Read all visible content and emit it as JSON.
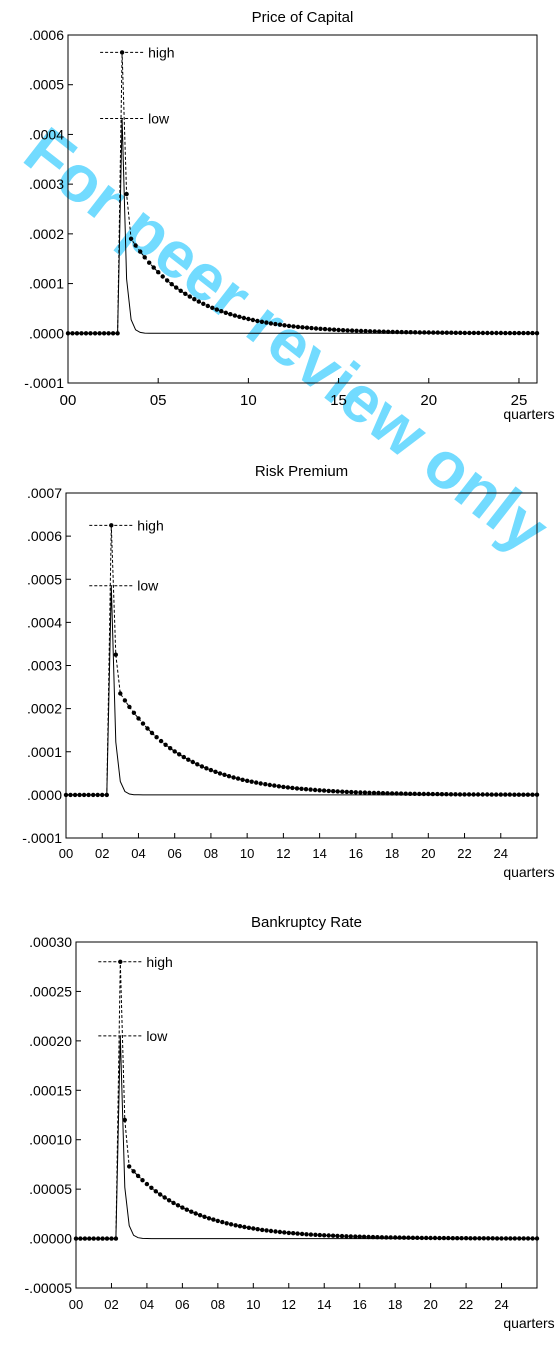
{
  "watermark": "For peer review only",
  "colors": {
    "axis": "#000000",
    "line": "#000000",
    "watermark": "#00bfff"
  },
  "chart_data": [
    {
      "type": "line",
      "title": "Price of Capital",
      "xlabel": "quarters",
      "ylim": [
        -0.0001,
        0.0006
      ],
      "yticks": [
        ".0006",
        ".0005",
        ".0004",
        ".0003",
        ".0002",
        ".0001",
        ".0000",
        "-.0001"
      ],
      "xlim": [
        0,
        26
      ],
      "xticks": [
        "00",
        "05",
        "10",
        "15",
        "20",
        "25"
      ],
      "grid": false,
      "series": [
        {
          "name": "high",
          "style": "dashed-dots",
          "pre": 0,
          "shock_q": 3,
          "peak": 0.000565,
          "points": [
            [
              3.25,
              0.00028
            ],
            [
              3.5,
              0.00019
            ]
          ],
          "decay": 0.64
        },
        {
          "name": "low",
          "style": "solid",
          "pre": 0,
          "shock_q": 3,
          "peak": 0.000432,
          "decay": 5.5
        }
      ]
    },
    {
      "type": "line",
      "title": "Risk Premium",
      "xlabel": "quarters",
      "ylim": [
        -0.0001,
        0.0007
      ],
      "yticks": [
        ".0007",
        ".0006",
        ".0005",
        ".0004",
        ".0003",
        ".0002",
        ".0001",
        ".0000",
        "-.0001"
      ],
      "xlim": [
        0,
        26
      ],
      "xticks": [
        "00",
        "02",
        "04",
        "06",
        "08",
        "10",
        "12",
        "14",
        "16",
        "18",
        "20",
        "22",
        "24"
      ],
      "grid": false,
      "series": [
        {
          "name": "high",
          "style": "dashed-dots",
          "pre": 0,
          "shock_q": 2.5,
          "peak": 0.000625,
          "points": [
            [
              2.75,
              0.000325
            ],
            [
              3.0,
              0.000235
            ]
          ],
          "decay": 0.62
        },
        {
          "name": "low",
          "style": "solid",
          "pre": 0,
          "shock_q": 2.5,
          "peak": 0.000485,
          "decay": 5.5
        }
      ]
    },
    {
      "type": "line",
      "title": "Bankruptcy Rate",
      "xlabel": "quarters",
      "ylim": [
        -5e-05,
        0.0003
      ],
      "yticks": [
        ".00030",
        ".00025",
        ".00020",
        ".00015",
        ".00010",
        ".00005",
        ".00000",
        "-.00005"
      ],
      "xlim": [
        0,
        26
      ],
      "xticks": [
        "00",
        "02",
        "04",
        "06",
        "08",
        "10",
        "12",
        "14",
        "16",
        "18",
        "20",
        "22",
        "24"
      ],
      "grid": false,
      "series": [
        {
          "name": "high",
          "style": "dashed-dots",
          "pre": 0,
          "shock_q": 2.5,
          "peak": 0.00028,
          "points": [
            [
              2.75,
              0.00012
            ],
            [
              3.0,
              7.3e-05
            ]
          ],
          "decay": 0.62
        },
        {
          "name": "low",
          "style": "solid",
          "pre": 0,
          "shock_q": 2.5,
          "peak": 0.000205,
          "decay": 5.5
        }
      ]
    }
  ]
}
